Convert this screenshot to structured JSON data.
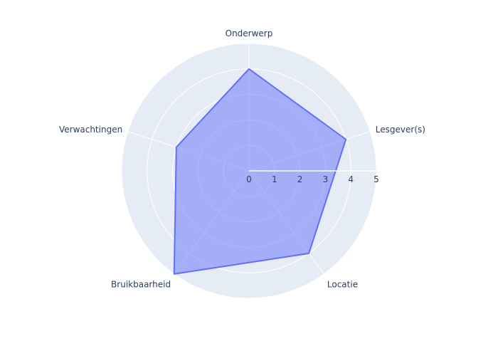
{
  "chart_data": {
    "type": "radar",
    "title": "",
    "categories": [
      "Onderwerp",
      "Lesgever(s)",
      "Locatie",
      "Bruikbaarheid",
      "Verwachtingen"
    ],
    "series": [
      {
        "values": [
          4,
          4,
          4,
          5,
          3
        ]
      }
    ],
    "radial_range": [
      0,
      5
    ],
    "radial_ticks": [
      "0",
      "1",
      "2",
      "3",
      "4",
      "5"
    ],
    "grid": true,
    "colors": {
      "plot_background": "#e5ecf6",
      "gridline": "#ffffff",
      "fill": "#636efa",
      "line": "#636efa",
      "text": "#2a3f5f"
    }
  }
}
